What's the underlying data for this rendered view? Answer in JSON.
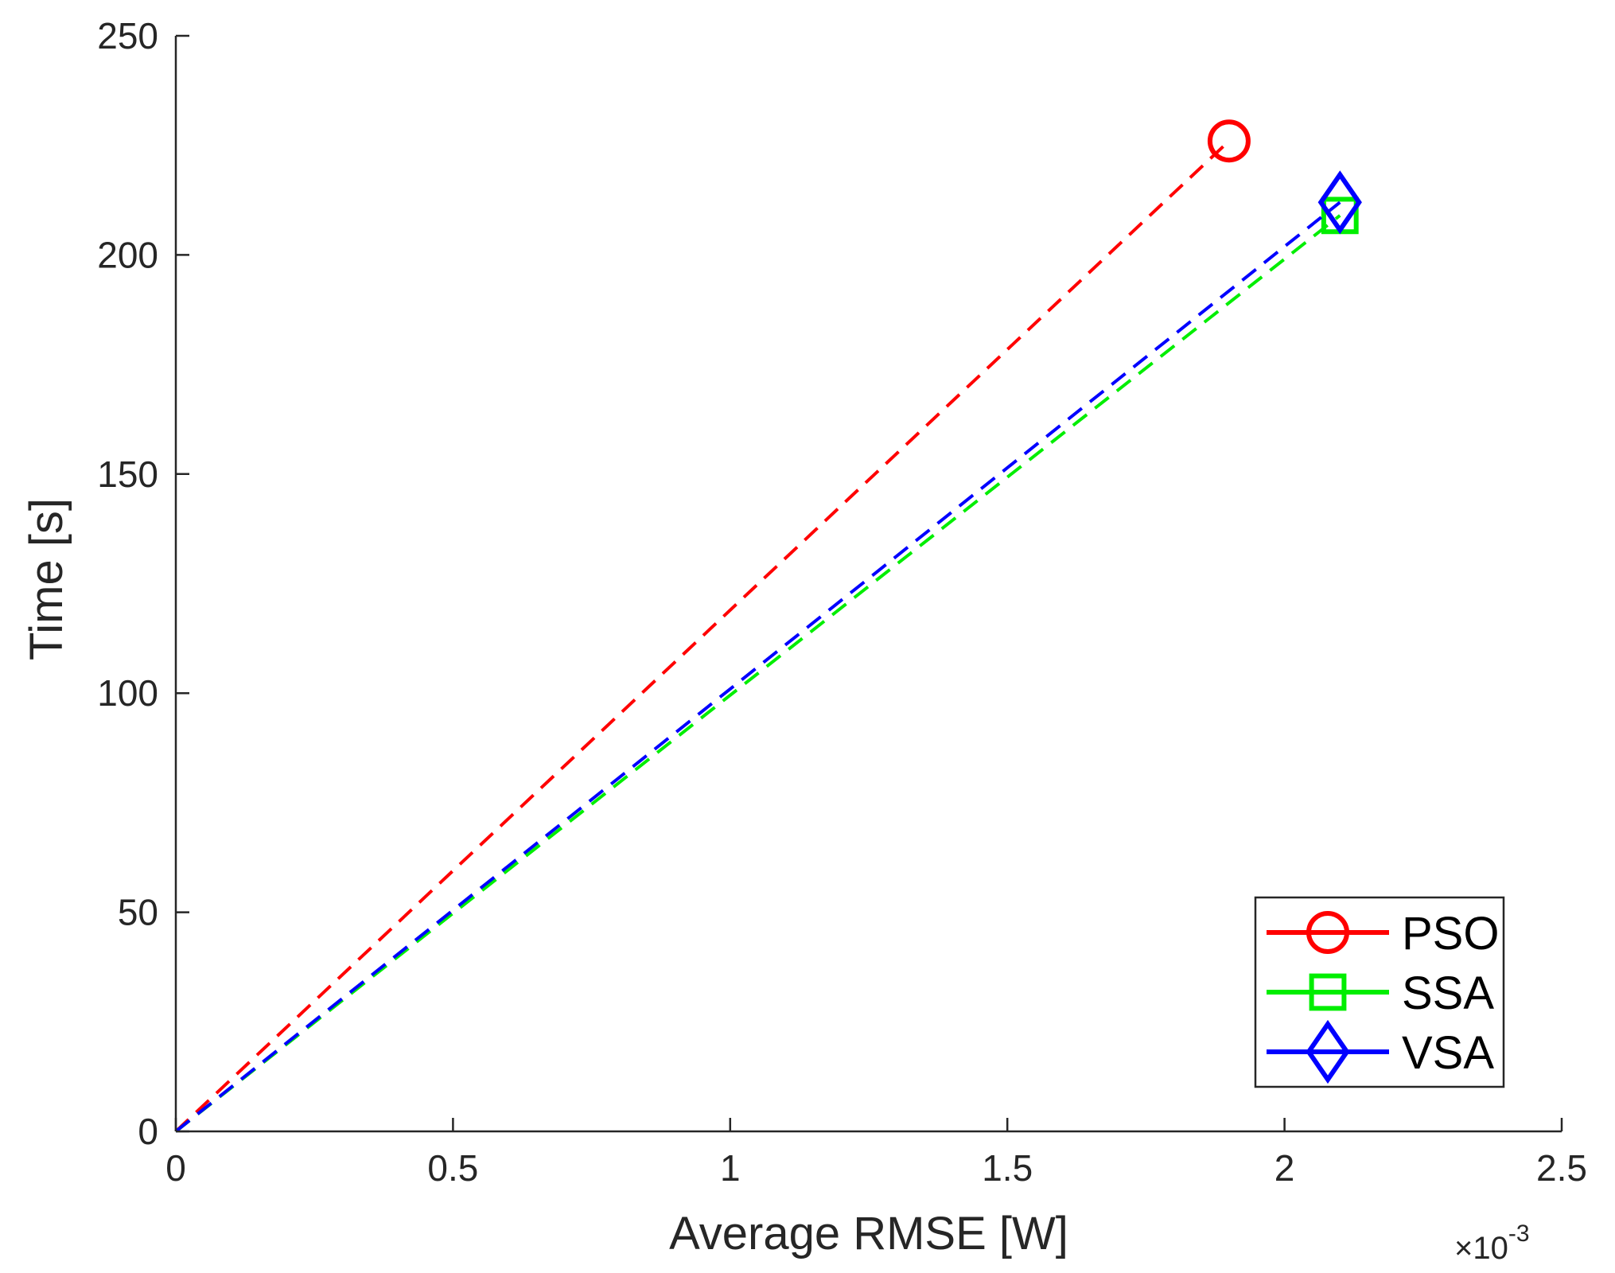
{
  "chart_data": {
    "type": "line",
    "xlabel": "Average RMSE [W]",
    "ylabel": "Time [s]",
    "x_multiplier_label": "×10",
    "x_multiplier_exponent": "-3",
    "xlim": [
      0,
      2.5
    ],
    "ylim": [
      0,
      250
    ],
    "x_ticks": [
      0,
      0.5,
      1,
      1.5,
      2,
      2.5
    ],
    "x_tick_labels": [
      "0",
      "0.5",
      "1",
      "1.5",
      "2",
      "2.5"
    ],
    "y_ticks": [
      0,
      50,
      100,
      150,
      200,
      250
    ],
    "y_tick_labels": [
      "0",
      "50",
      "100",
      "150",
      "200",
      "250"
    ],
    "grid": false,
    "legend_position": "bottom-right",
    "series": [
      {
        "name": "PSO",
        "color": "#ff0000",
        "marker": "circle",
        "line_style": "dashed",
        "x": [
          0,
          1.9
        ],
        "y": [
          0,
          226
        ]
      },
      {
        "name": "SSA",
        "color": "#00ee00",
        "marker": "square",
        "line_style": "dashed",
        "x": [
          0,
          2.1
        ],
        "y": [
          0,
          209
        ]
      },
      {
        "name": "VSA",
        "color": "#0000ff",
        "marker": "diamond",
        "line_style": "dashed",
        "x": [
          0,
          2.1
        ],
        "y": [
          0,
          212
        ]
      }
    ]
  }
}
